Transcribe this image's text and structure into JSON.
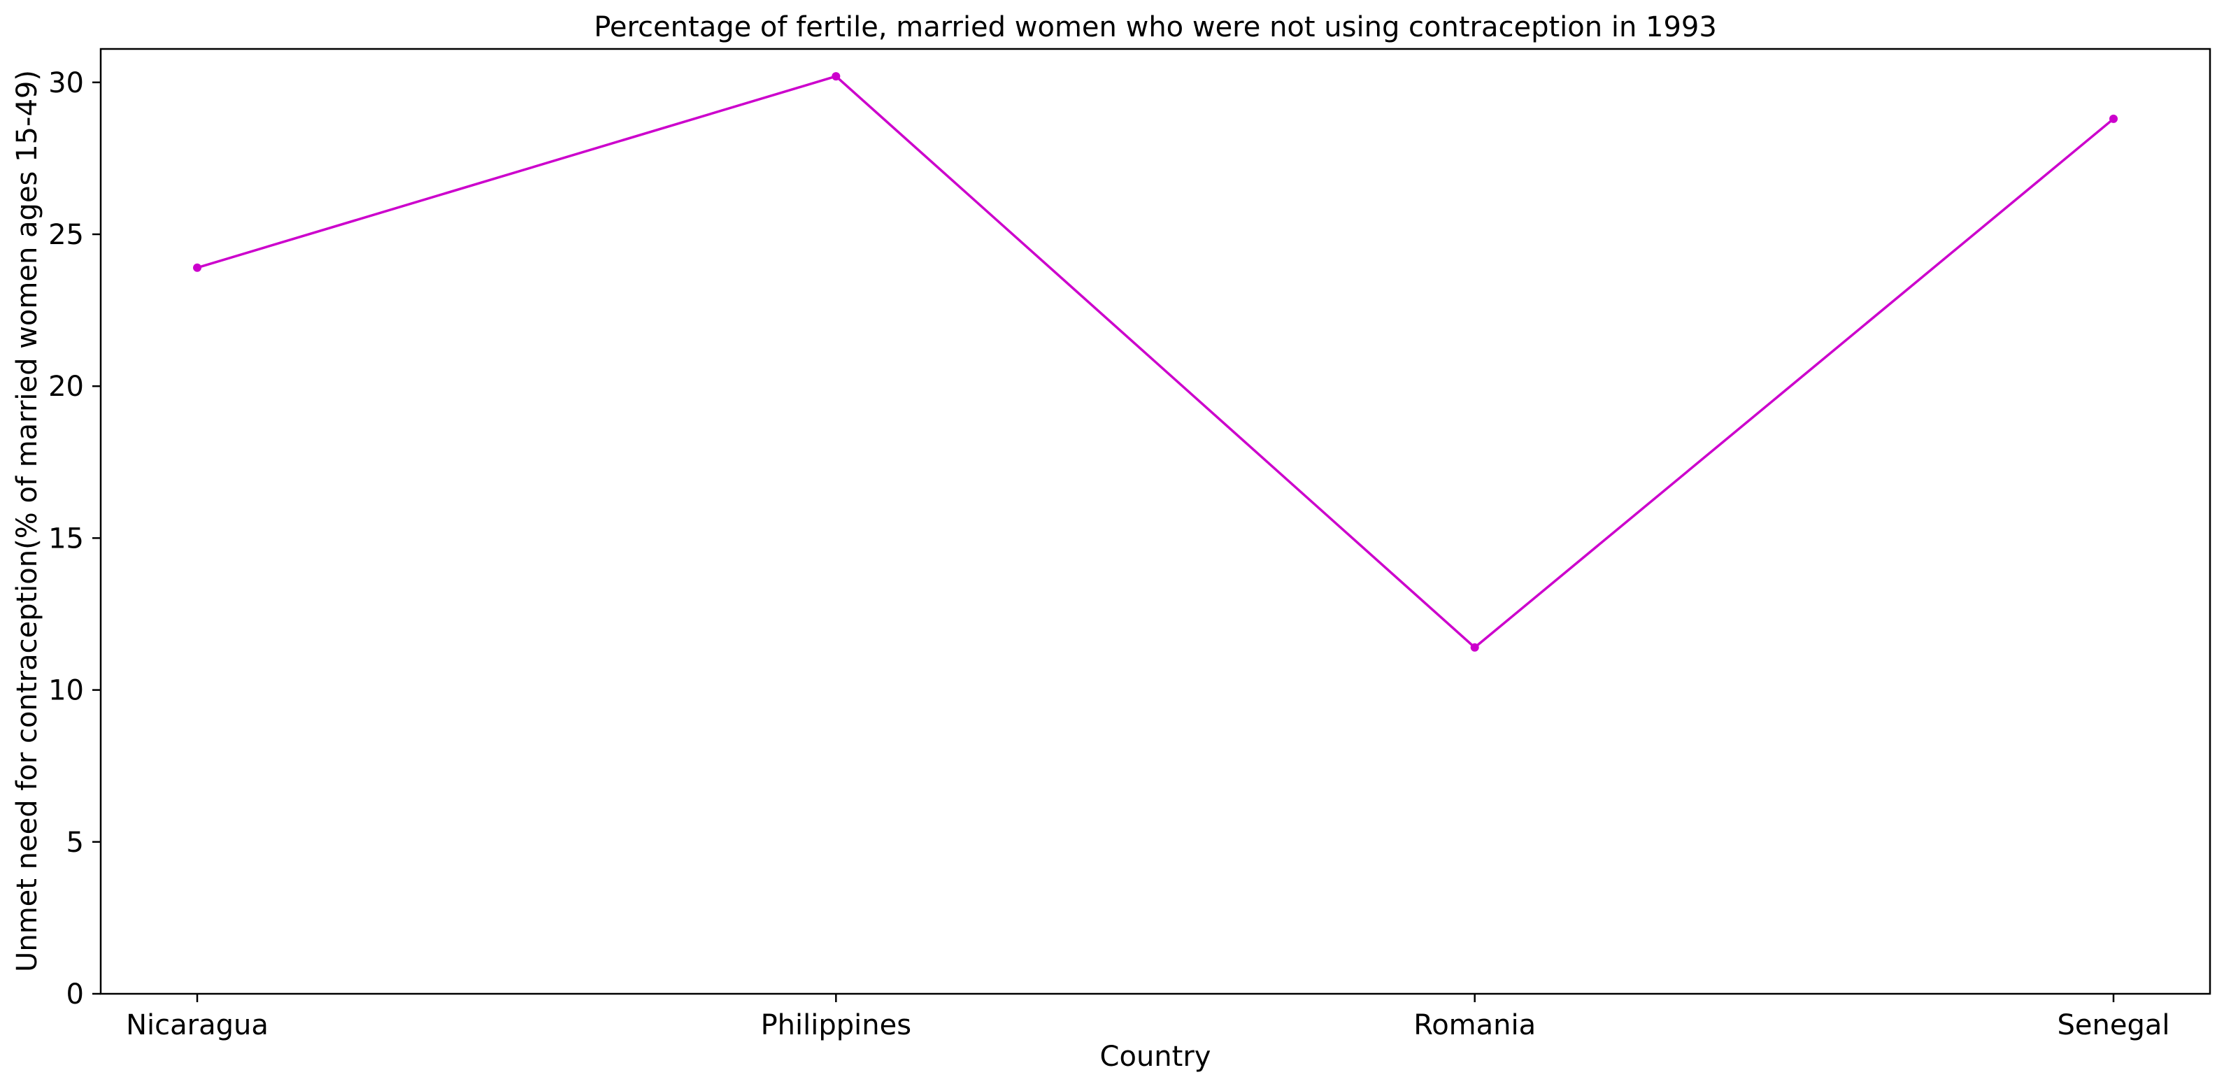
{
  "chart_data": {
    "type": "line",
    "title": "Percentage of fertile, married women who were not using contraception in 1993",
    "xlabel": "Country",
    "ylabel": "Unmet need for contraception(% of married women ages 15-49)",
    "categories": [
      "Nicaragua",
      "Philippines",
      "Romania",
      "Senegal"
    ],
    "series": [
      {
        "values": [
          23.9,
          30.2,
          11.4,
          28.8
        ],
        "color": "#cc00cc",
        "marker": "circle"
      }
    ],
    "ylim": [
      0,
      31.1
    ],
    "yticks": [
      0,
      5,
      10,
      15,
      20,
      25,
      30
    ],
    "grid": false,
    "legend": "none"
  }
}
